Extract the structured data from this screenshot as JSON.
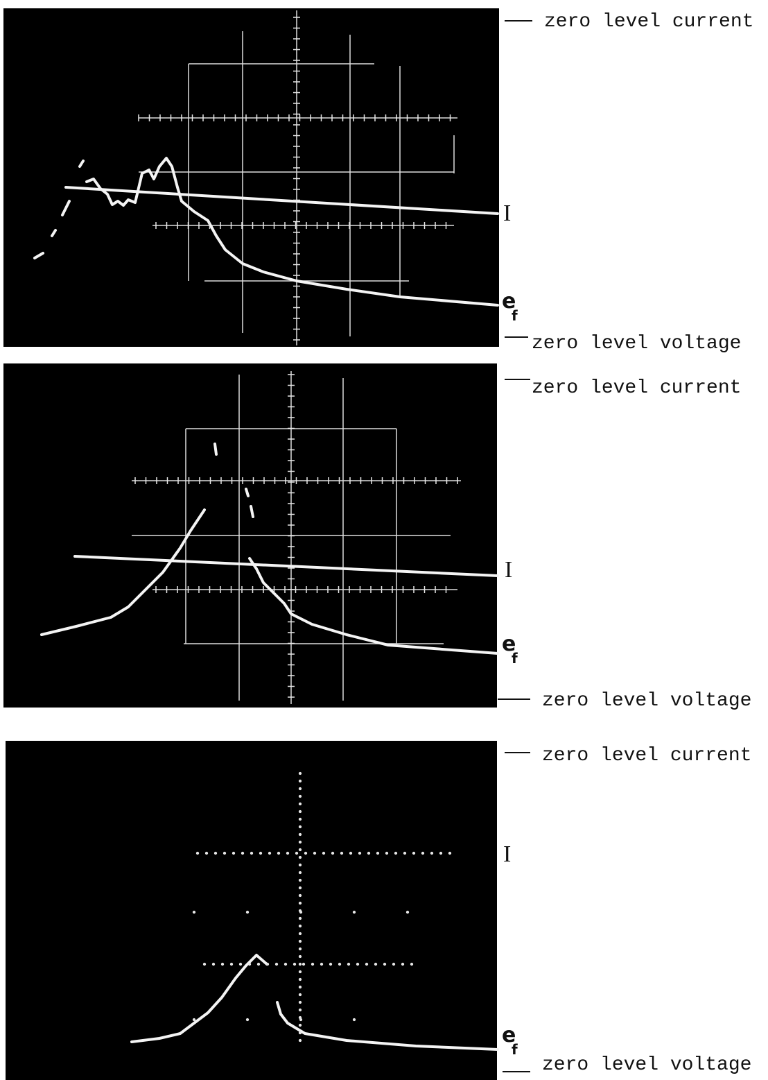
{
  "panels": [
    {
      "zero_current": "zero level current",
      "current": "I",
      "voltage": "e",
      "voltage_subscript": "f",
      "zero_voltage": "zero level voltage"
    },
    {
      "zero_current": "zero level current",
      "current": "I",
      "voltage": "e",
      "voltage_subscript": "f",
      "zero_voltage": "zero level voltage"
    },
    {
      "zero_current": "zero level current",
      "current": "I",
      "voltage": "e",
      "voltage_subscript": "f",
      "zero_voltage": "zero level voltage"
    }
  ]
}
